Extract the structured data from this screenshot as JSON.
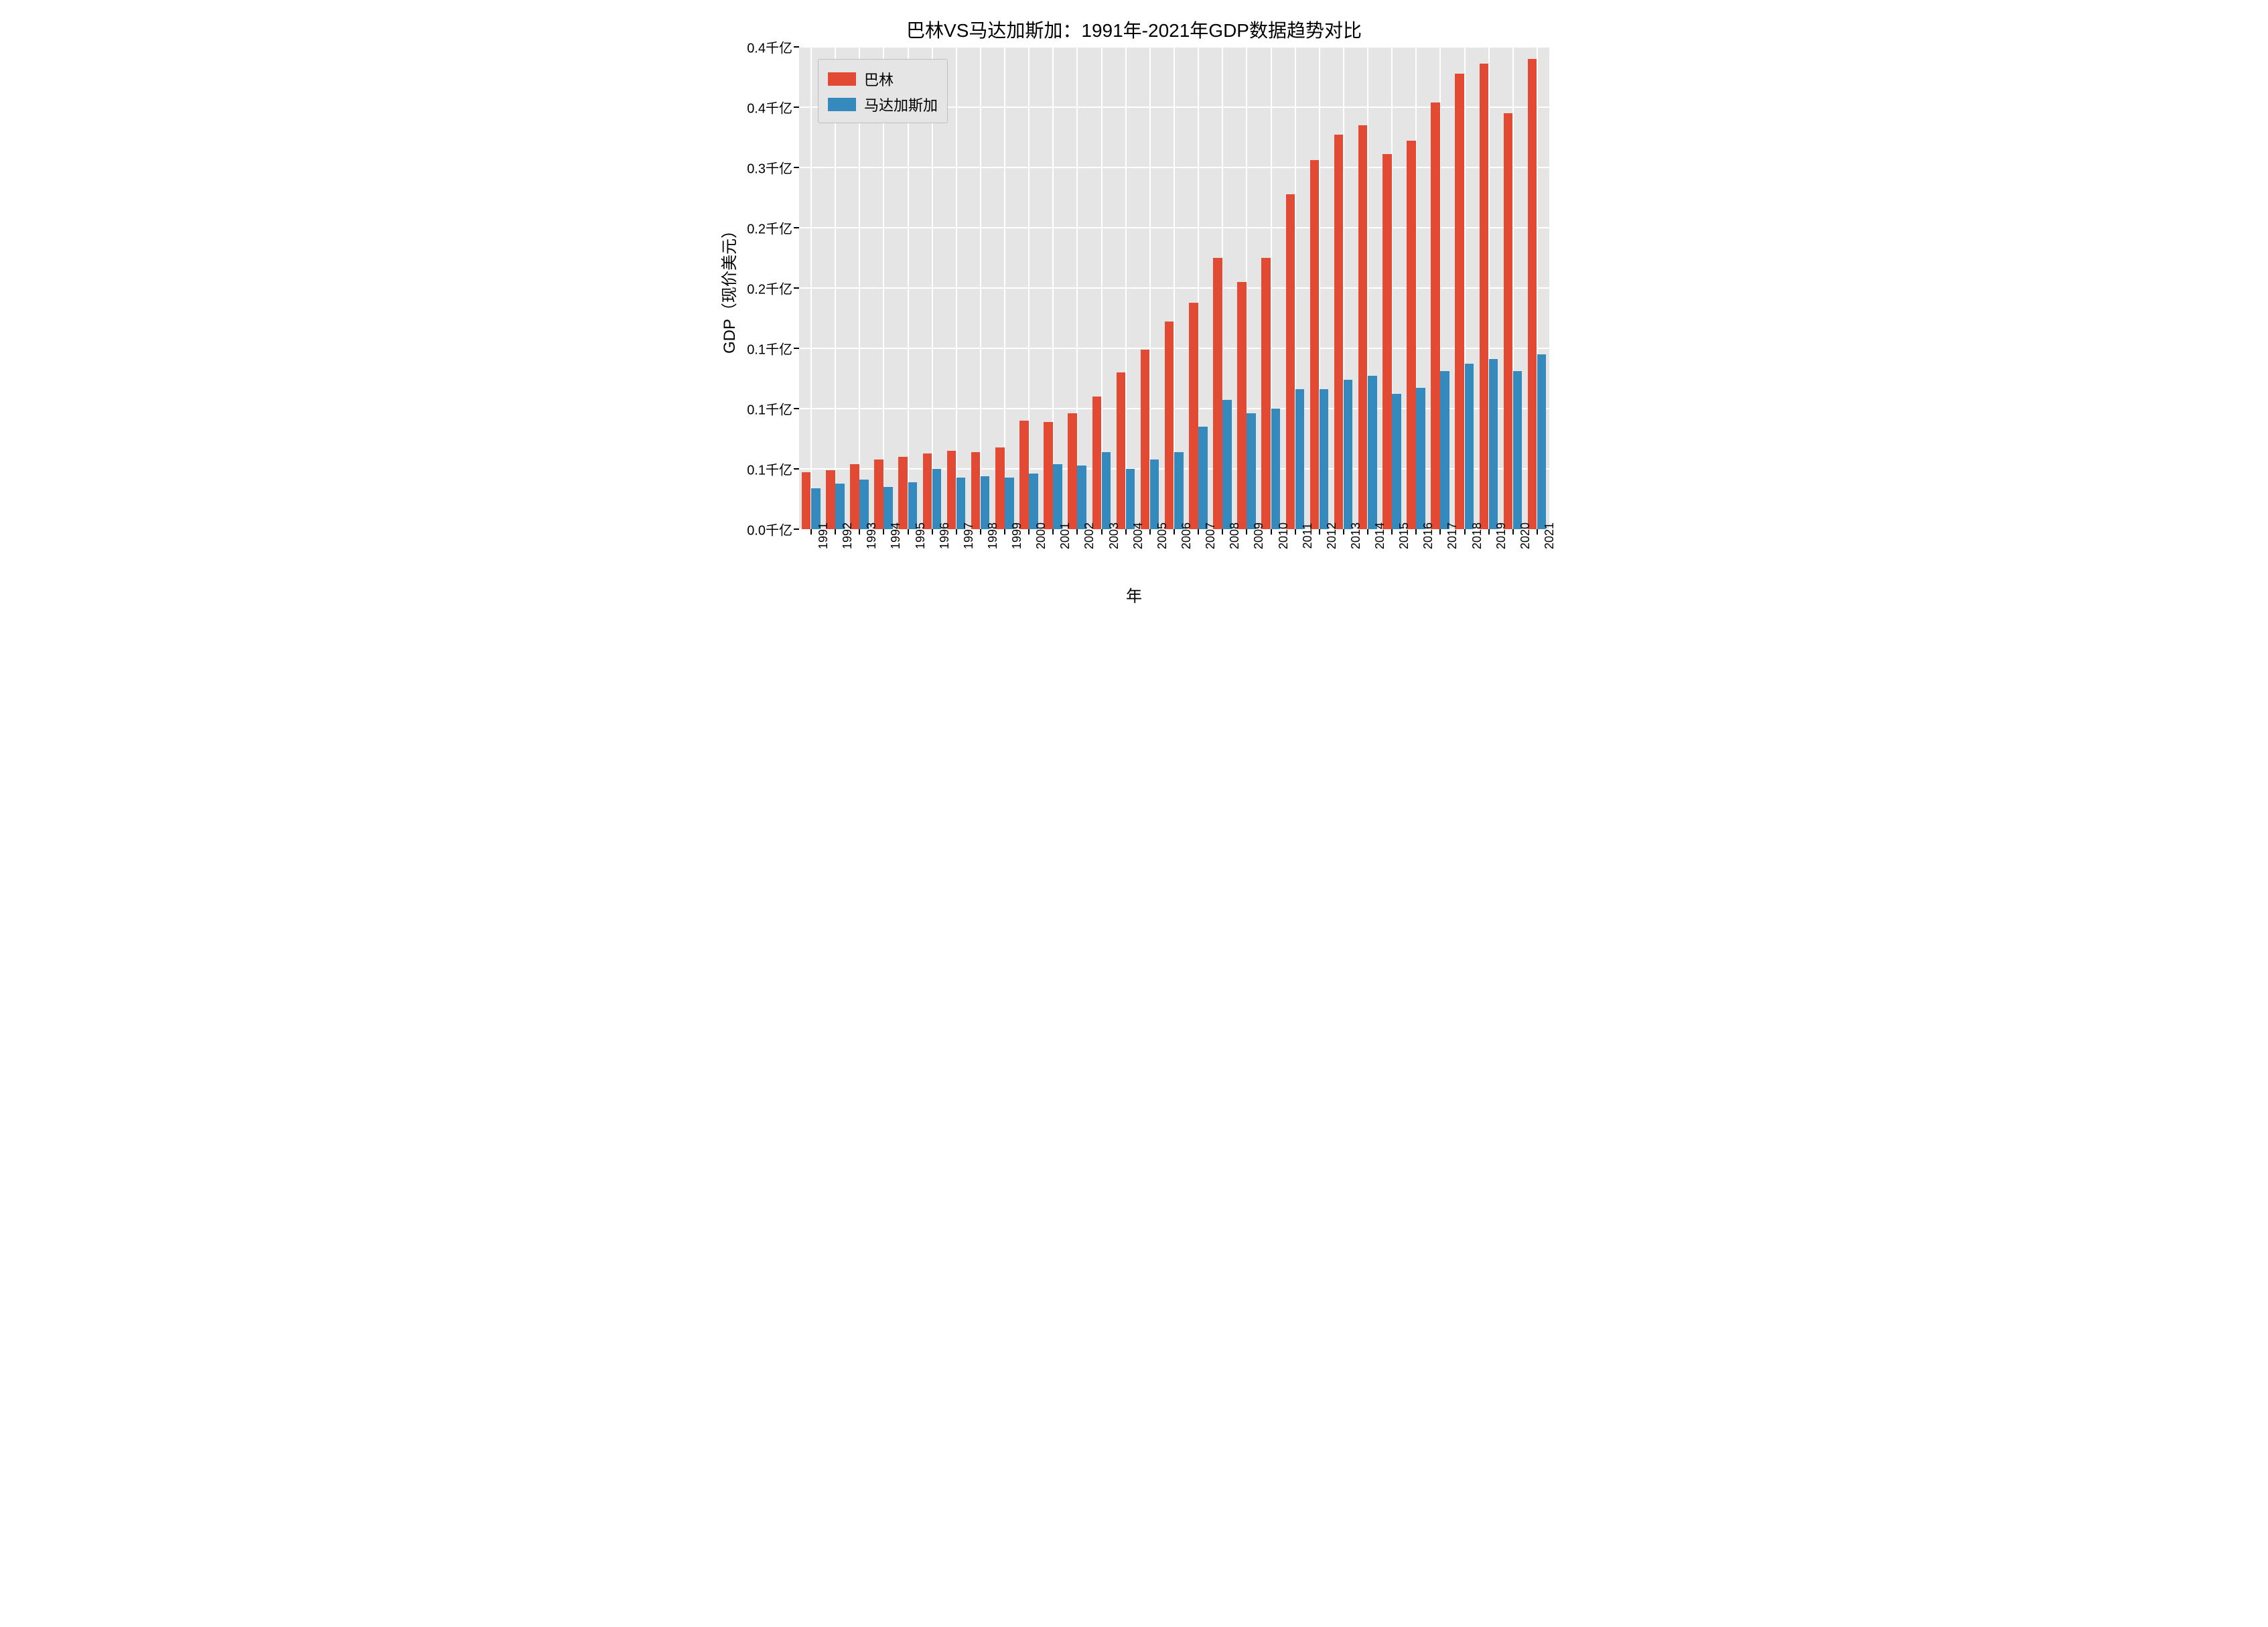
{
  "chart": {
    "type": "bar",
    "title": "巴林VS马达加斯加：1991年-2021年GDP数据趋势对比",
    "title_fontsize": 28,
    "xlabel": "年",
    "ylabel": "GDP（现价美元）",
    "label_fontsize": 24,
    "tick_fontsize": 20,
    "background_color": "#ffffff",
    "plot_background_color": "#e5e5e5",
    "grid_color": "#ffffff",
    "ylim": [
      0,
      0.4
    ],
    "ytick_step": 0.05,
    "ytick_labels": [
      "0.0千亿",
      "0.1千亿",
      "0.1千亿",
      "0.1千亿",
      "0.2千亿",
      "0.2千亿",
      "0.3千亿",
      "0.4千亿",
      "0.4千亿"
    ],
    "categories": [
      "1991",
      "1992",
      "1993",
      "1994",
      "1995",
      "1996",
      "1997",
      "1998",
      "1999",
      "2000",
      "2001",
      "2002",
      "2003",
      "2004",
      "2005",
      "2006",
      "2007",
      "2008",
      "2009",
      "2010",
      "2011",
      "2012",
      "2013",
      "2014",
      "2015",
      "2016",
      "2017",
      "2018",
      "2019",
      "2020",
      "2021"
    ],
    "series": [
      {
        "name": "巴林",
        "color": "#e24a33",
        "values": [
          0.047,
          0.049,
          0.054,
          0.058,
          0.06,
          0.063,
          0.065,
          0.064,
          0.068,
          0.09,
          0.089,
          0.096,
          0.11,
          0.13,
          0.149,
          0.172,
          0.188,
          0.225,
          0.205,
          0.225,
          0.278,
          0.306,
          0.327,
          0.335,
          0.311,
          0.322,
          0.354,
          0.378,
          0.386,
          0.345,
          0.39
        ]
      },
      {
        "name": "马达加斯加",
        "color": "#348abd",
        "values": [
          0.034,
          0.038,
          0.041,
          0.035,
          0.039,
          0.05,
          0.043,
          0.044,
          0.043,
          0.046,
          0.054,
          0.053,
          0.064,
          0.05,
          0.058,
          0.064,
          0.085,
          0.107,
          0.096,
          0.1,
          0.116,
          0.116,
          0.124,
          0.127,
          0.112,
          0.117,
          0.131,
          0.137,
          0.141,
          0.131,
          0.145
        ]
      }
    ],
    "bar_group_width_ratio": 0.78,
    "legend": {
      "position": "upper-left",
      "border_color": "#bfbfbf",
      "background_color": "#e5e5e5",
      "fontsize": 22
    }
  }
}
